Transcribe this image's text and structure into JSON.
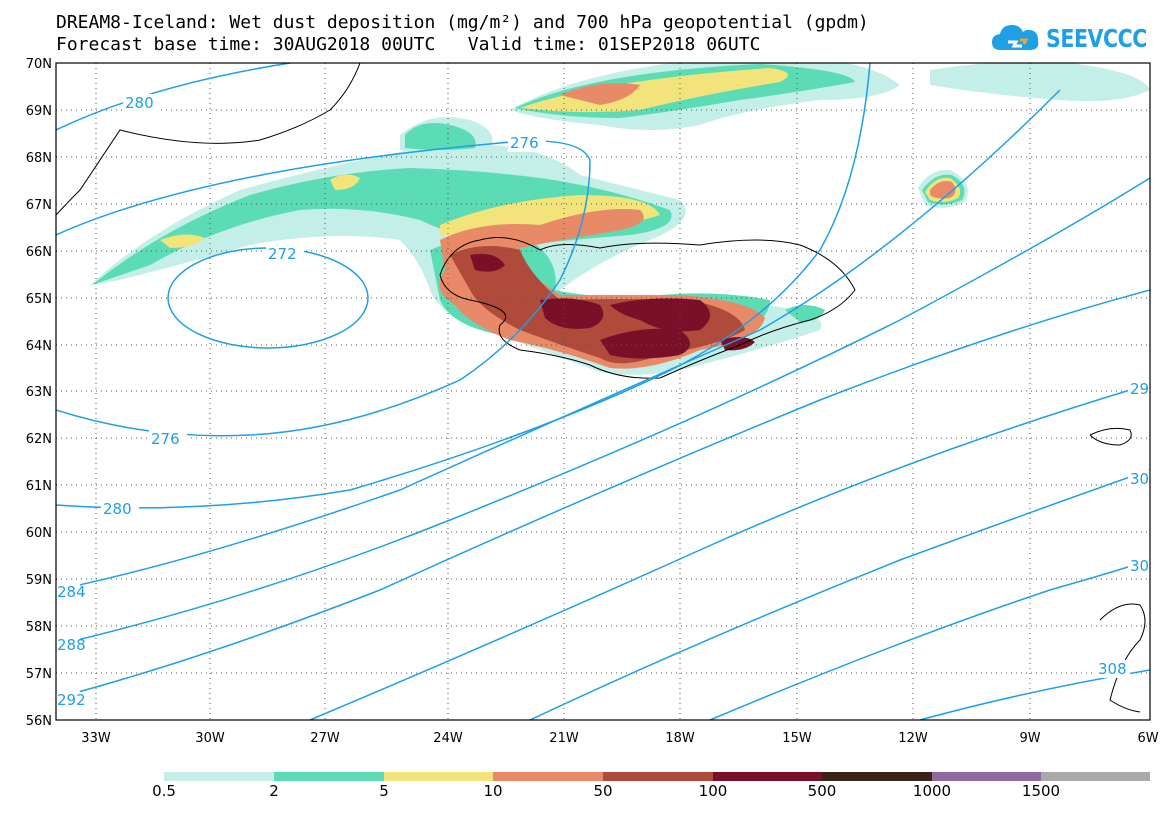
{
  "header": {
    "title_line1": "DREAM8-Iceland: Wet dust deposition (mg/m²) and 700 hPa geopotential (gpdm)",
    "title_line2": "Forecast base time: 30AUG2018 00UTC   Valid time: 01SEP2018 06UTC"
  },
  "logo": {
    "text": "SEEVCCC",
    "icon": "cloud-icon"
  },
  "map": {
    "lat_labels": [
      "70N",
      "69N",
      "68N",
      "67N",
      "66N",
      "65N",
      "64N",
      "63N",
      "62N",
      "61N",
      "60N",
      "59N",
      "58N",
      "57N",
      "56N"
    ],
    "lon_labels": [
      "33W",
      "30W",
      "27W",
      "24W",
      "21W",
      "18W",
      "15W",
      "12W",
      "9W",
      "6W"
    ],
    "contour_labels": [
      "280",
      "276",
      "272",
      "276",
      "280",
      "284",
      "288",
      "292",
      "29",
      "30",
      "30",
      "308"
    ],
    "contour_color": "#1e9fe6"
  },
  "colorbar": {
    "labels": [
      "0.5",
      "2",
      "5",
      "10",
      "50",
      "100",
      "500",
      "1000",
      "1500"
    ],
    "colors": [
      "#c3efe8",
      "#5cdcb4",
      "#f2e37a",
      "#e88a68",
      "#b04a3a",
      "#7a0f2a",
      "#3c2318",
      "#8e6a9e",
      "#a9a9a9"
    ]
  }
}
